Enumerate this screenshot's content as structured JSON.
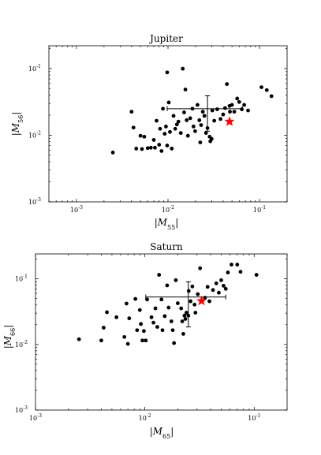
{
  "chart_data": [
    {
      "type": "scatter",
      "title": "Jupiter",
      "xlabel": "|M55|",
      "ylabel": "|M56|",
      "xscale": "log",
      "yscale": "log",
      "xlim": [
        0.0005,
        0.2
      ],
      "ylim": [
        0.001,
        0.22
      ],
      "xticks": [
        {
          "value": 0.001,
          "label": "10"
        },
        {
          "value": 0.01,
          "label": "10"
        },
        {
          "value": 0.1,
          "label": "10"
        }
      ],
      "xtick_exponents": [
        "-3",
        "-2",
        "-1"
      ],
      "yticks": [
        {
          "value": 0.001,
          "label": "10"
        },
        {
          "value": 0.01,
          "label": "10"
        },
        {
          "value": 0.1,
          "label": "10"
        }
      ],
      "ytick_exponents": [
        "-3",
        "-2",
        "-1"
      ],
      "points": [
        [
          0.0025,
          0.0055
        ],
        [
          0.004,
          0.0225
        ],
        [
          0.0042,
          0.013
        ],
        [
          0.0045,
          0.0063
        ],
        [
          0.005,
          0.0098
        ],
        [
          0.0052,
          0.0062
        ],
        [
          0.0055,
          0.0095
        ],
        [
          0.006,
          0.0064
        ],
        [
          0.0065,
          0.0065
        ],
        [
          0.007,
          0.0085
        ],
        [
          0.0072,
          0.0065
        ],
        [
          0.0075,
          0.0165
        ],
        [
          0.008,
          0.0072
        ],
        [
          0.0082,
          0.0125
        ],
        [
          0.0085,
          0.0058
        ],
        [
          0.0088,
          0.025
        ],
        [
          0.0092,
          0.0105
        ],
        [
          0.0095,
          0.0135
        ],
        [
          0.0098,
          0.0875
        ],
        [
          0.0098,
          0.007
        ],
        [
          0.0102,
          0.031
        ],
        [
          0.0105,
          0.0112
        ],
        [
          0.011,
          0.0063
        ],
        [
          0.0115,
          0.0195
        ],
        [
          0.012,
          0.0125
        ],
        [
          0.0125,
          0.0145
        ],
        [
          0.013,
          0.016
        ],
        [
          0.0138,
          0.0108
        ],
        [
          0.0145,
          0.0995
        ],
        [
          0.015,
          0.022
        ],
        [
          0.0155,
          0.0485
        ],
        [
          0.016,
          0.0168
        ],
        [
          0.0165,
          0.0098
        ],
        [
          0.0175,
          0.018
        ],
        [
          0.0185,
          0.025
        ],
        [
          0.019,
          0.0135
        ],
        [
          0.0198,
          0.0115
        ],
        [
          0.021,
          0.0285
        ],
        [
          0.022,
          0.0168
        ],
        [
          0.0225,
          0.0078
        ],
        [
          0.023,
          0.0142
        ],
        [
          0.024,
          0.0225
        ],
        [
          0.025,
          0.0195
        ],
        [
          0.026,
          0.0108
        ],
        [
          0.027,
          0.0128
        ],
        [
          0.0285,
          0.0095
        ],
        [
          0.029,
          0.0081
        ],
        [
          0.03,
          0.0088
        ],
        [
          0.0305,
          0.0235
        ],
        [
          0.032,
          0.0165
        ],
        [
          0.0345,
          0.0245
        ],
        [
          0.0375,
          0.0175
        ],
        [
          0.04,
          0.0205
        ],
        [
          0.042,
          0.0255
        ],
        [
          0.044,
          0.0585
        ],
        [
          0.047,
          0.0275
        ],
        [
          0.0475,
          0.0225
        ],
        [
          0.05,
          0.0285
        ],
        [
          0.053,
          0.0225
        ],
        [
          0.057,
          0.0355
        ],
        [
          0.06,
          0.0315
        ],
        [
          0.064,
          0.0245
        ],
        [
          0.068,
          0.0285
        ],
        [
          0.075,
          0.0235
        ],
        [
          0.105,
          0.0525
        ],
        [
          0.12,
          0.0475
        ],
        [
          0.135,
          0.0385
        ]
      ],
      "mean_point": [
        0.027,
        0.025
      ],
      "x_error": [
        0.0098,
        0.065
      ],
      "y_error": [
        0.0115,
        0.039
      ],
      "highlight": [
        0.047,
        0.016
      ],
      "highlight_color": "#ff0000"
    },
    {
      "type": "scatter",
      "title": "Saturn",
      "xlabel": "|M65|",
      "ylabel": "|M66|",
      "xscale": "log",
      "yscale": "log",
      "xlim": [
        0.001,
        0.2
      ],
      "ylim": [
        0.001,
        0.24
      ],
      "xticks": [
        {
          "value": 0.001,
          "label": "10"
        },
        {
          "value": 0.01,
          "label": "10"
        },
        {
          "value": 0.1,
          "label": "10"
        }
      ],
      "xtick_exponents": [
        "-3",
        "-2",
        "-1"
      ],
      "yticks": [
        {
          "value": 0.001,
          "label": "10"
        },
        {
          "value": 0.01,
          "label": "10"
        },
        {
          "value": 0.1,
          "label": "10"
        }
      ],
      "ytick_exponents": [
        "-3",
        "-2",
        "-1"
      ],
      "points": [
        [
          0.0025,
          0.012
        ],
        [
          0.004,
          0.0115
        ],
        [
          0.0042,
          0.018
        ],
        [
          0.0045,
          0.031
        ],
        [
          0.0055,
          0.026
        ],
        [
          0.0065,
          0.013
        ],
        [
          0.0068,
          0.042
        ],
        [
          0.007,
          0.0102
        ],
        [
          0.0072,
          0.025
        ],
        [
          0.0082,
          0.0495
        ],
        [
          0.0085,
          0.0165
        ],
        [
          0.009,
          0.0335
        ],
        [
          0.0092,
          0.0205
        ],
        [
          0.0095,
          0.0115
        ],
        [
          0.0098,
          0.016
        ],
        [
          0.0102,
          0.0115
        ],
        [
          0.0105,
          0.0485
        ],
        [
          0.0115,
          0.026
        ],
        [
          0.012,
          0.0215
        ],
        [
          0.0125,
          0.0355
        ],
        [
          0.013,
          0.0185
        ],
        [
          0.0135,
          0.115
        ],
        [
          0.0142,
          0.0485
        ],
        [
          0.0145,
          0.0165
        ],
        [
          0.0152,
          0.027
        ],
        [
          0.016,
          0.0795
        ],
        [
          0.0165,
          0.0365
        ],
        [
          0.0175,
          0.0225
        ],
        [
          0.018,
          0.0165
        ],
        [
          0.0185,
          0.0105
        ],
        [
          0.0192,
          0.0955
        ],
        [
          0.02,
          0.0425
        ],
        [
          0.0215,
          0.0355
        ],
        [
          0.022,
          0.0225
        ],
        [
          0.0225,
          0.0145
        ],
        [
          0.023,
          0.0275
        ],
        [
          0.0235,
          0.0245
        ],
        [
          0.024,
          0.0305
        ],
        [
          0.025,
          0.0275
        ],
        [
          0.0252,
          0.0655
        ],
        [
          0.0262,
          0.0455
        ],
        [
          0.0272,
          0.0765
        ],
        [
          0.0285,
          0.0405
        ],
        [
          0.029,
          0.0305
        ],
        [
          0.0305,
          0.0585
        ],
        [
          0.032,
          0.145
        ],
        [
          0.0355,
          0.0515
        ],
        [
          0.0375,
          0.0755
        ],
        [
          0.039,
          0.0455
        ],
        [
          0.042,
          0.0675
        ],
        [
          0.045,
          0.0855
        ],
        [
          0.0475,
          0.0615
        ],
        [
          0.05,
          0.0955
        ],
        [
          0.0525,
          0.0785
        ],
        [
          0.055,
          0.0705
        ],
        [
          0.0575,
          0.125
        ],
        [
          0.062,
          0.165
        ],
        [
          0.07,
          0.165
        ],
        [
          0.075,
          0.128
        ],
        [
          0.105,
          0.115
        ]
      ],
      "mean_point": [
        0.025,
        0.053
      ],
      "x_error": [
        0.0102,
        0.055
      ],
      "y_error": [
        0.0185,
        0.09
      ],
      "highlight": [
        0.033,
        0.046
      ],
      "highlight_color": "#ff0000"
    }
  ]
}
